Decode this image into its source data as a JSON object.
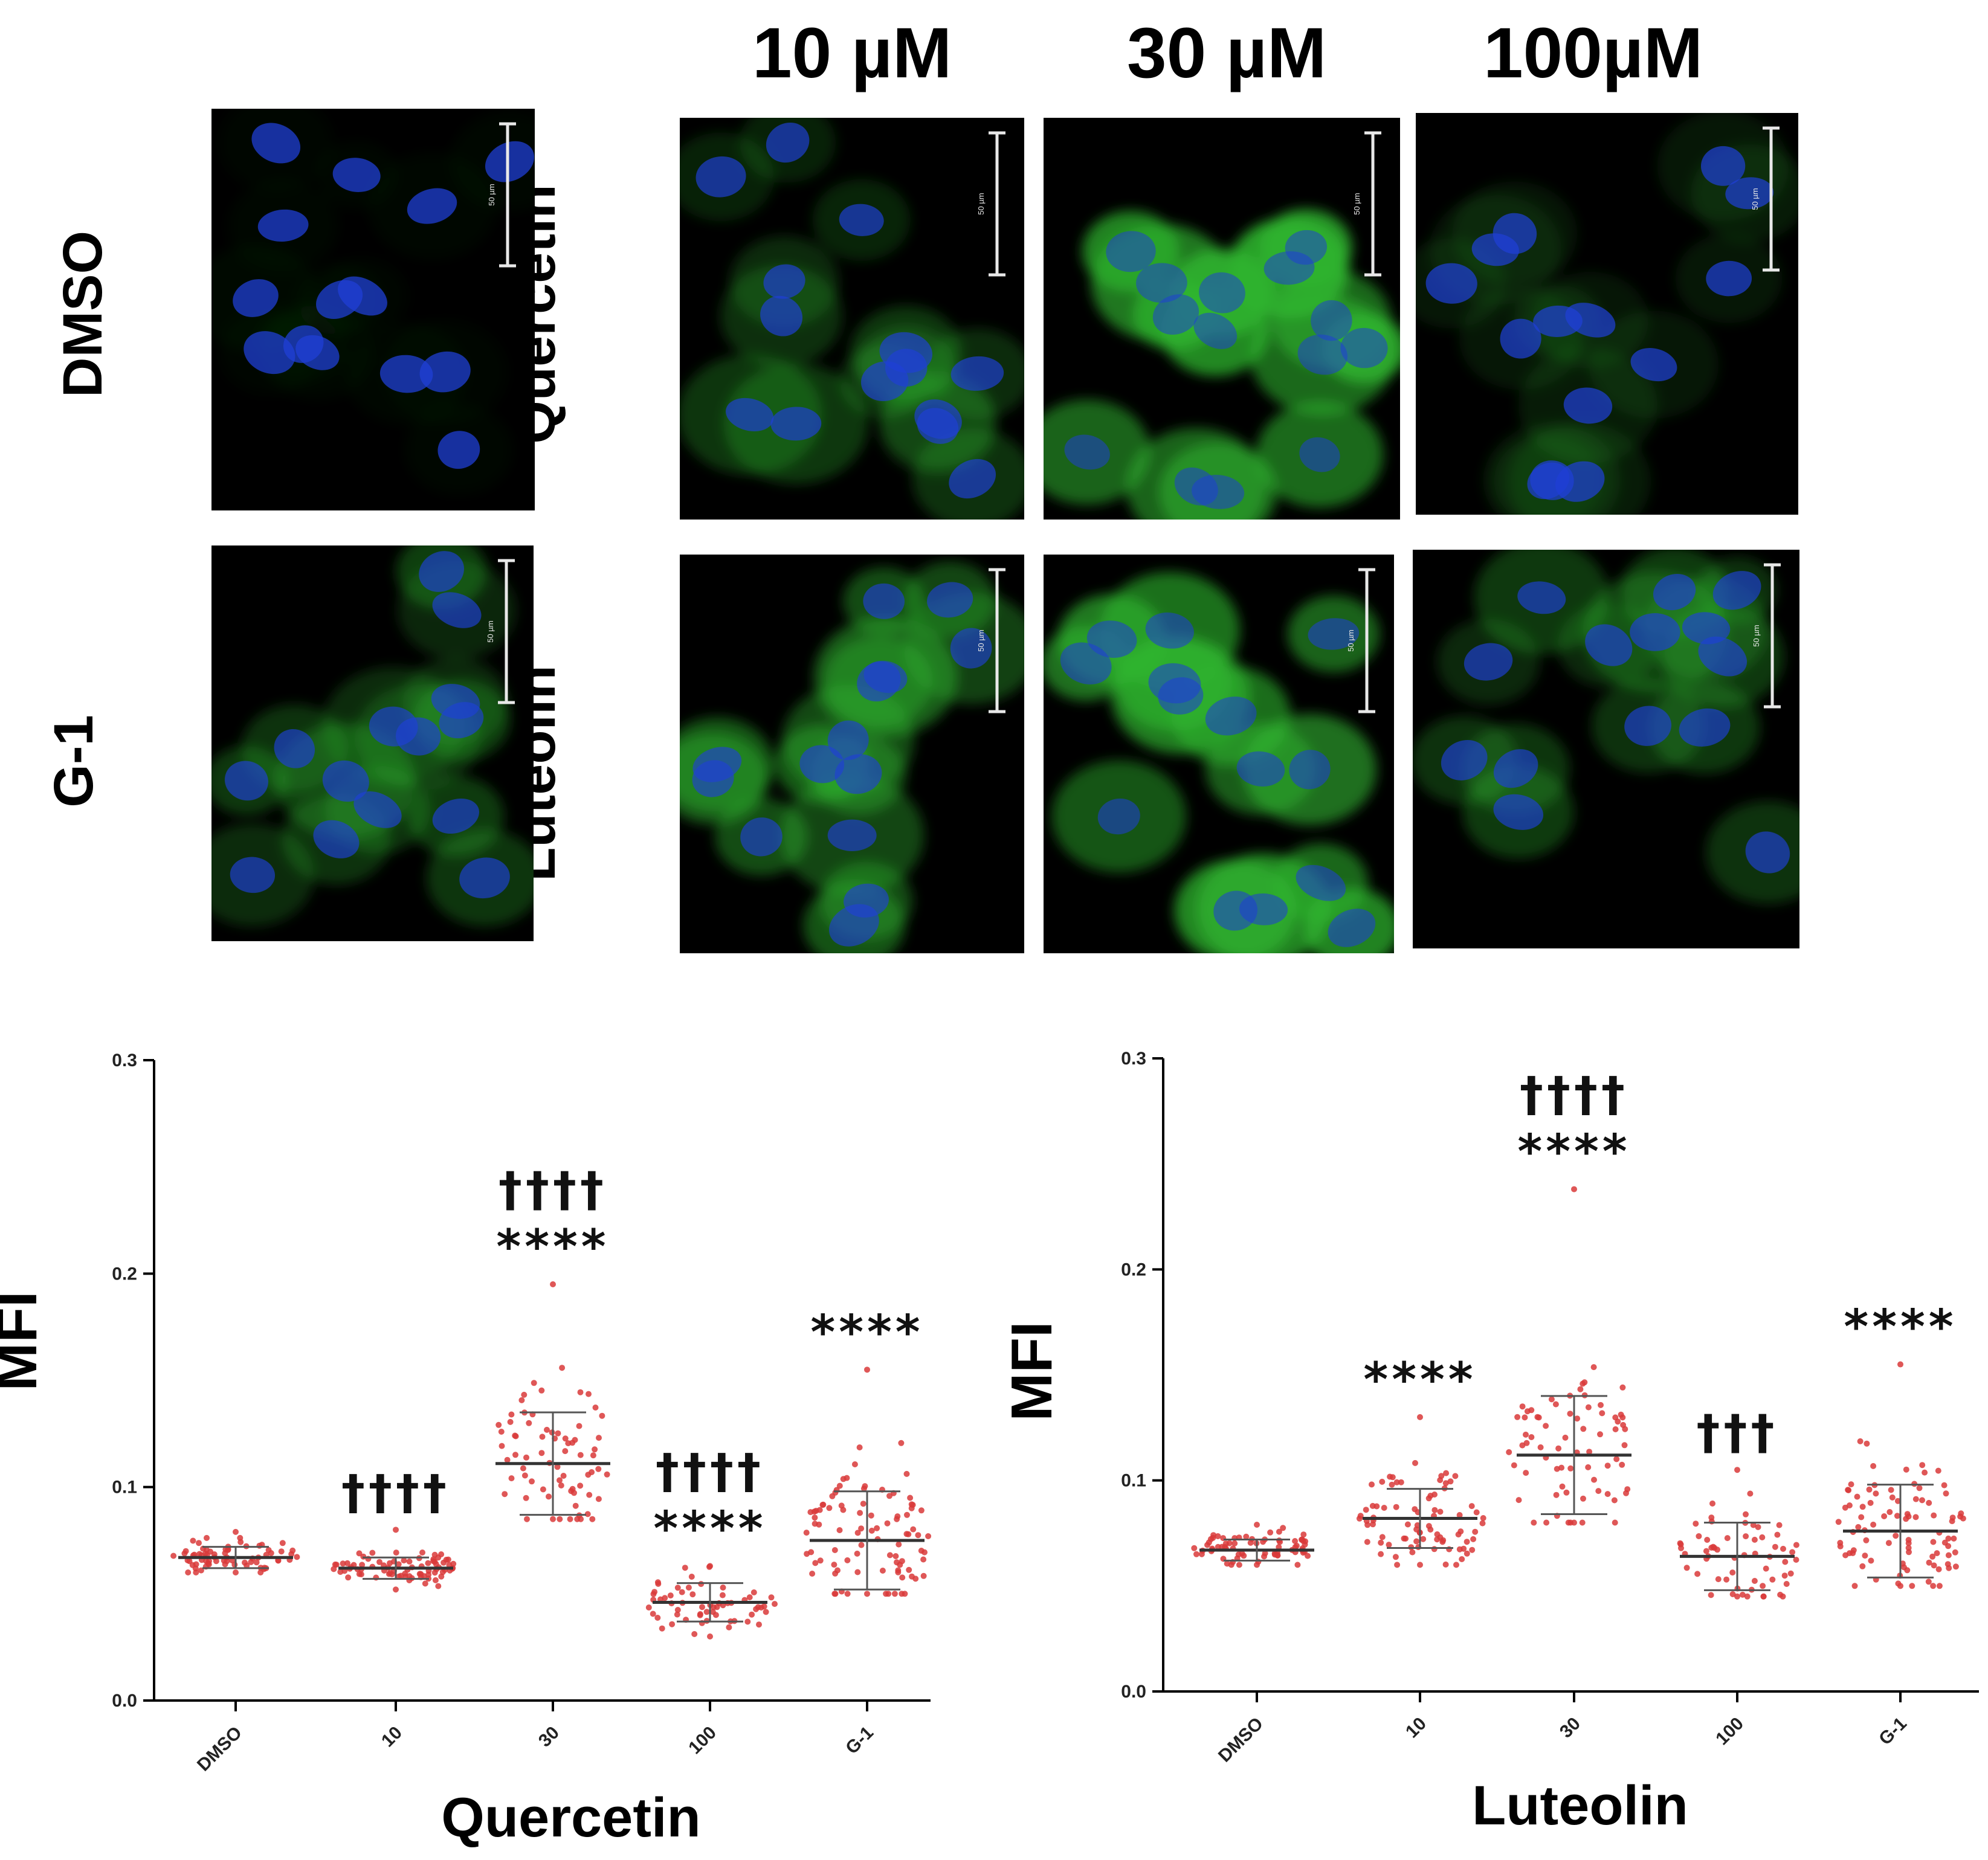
{
  "micrographs": {
    "conc_labels": [
      "10 µM",
      "30 µM",
      "100µM"
    ],
    "row_labels": [
      "DMSO",
      "G-1",
      "Quercetin",
      "Luteolin"
    ],
    "scale_bar_label": "50 µm",
    "panels": [
      {
        "row": "DMSO",
        "conc": "",
        "green_intensity": 0.05
      },
      {
        "row": "G-1",
        "conc": "",
        "green_intensity": 0.35
      },
      {
        "row": "Quercetin",
        "conc": "10 µM",
        "green_intensity": 0.3
      },
      {
        "row": "Quercetin",
        "conc": "30 µM",
        "green_intensity": 0.9
      },
      {
        "row": "Quercetin",
        "conc": "100µM",
        "green_intensity": 0.15
      },
      {
        "row": "Luteolin",
        "conc": "10 µM",
        "green_intensity": 0.5
      },
      {
        "row": "Luteolin",
        "conc": "30 µM",
        "green_intensity": 0.75
      },
      {
        "row": "Luteolin",
        "conc": "100µM",
        "green_intensity": 0.35
      }
    ],
    "colors": {
      "nucleus": "#1f3fd6",
      "cytoplasm": "#2fb52f",
      "background": "#000000"
    }
  },
  "chart_data": [
    {
      "type": "scatter",
      "ylabel": "MFI",
      "xlabel": "Quercetin",
      "categories": [
        "DMSO",
        "10",
        "30",
        "100",
        "G-1"
      ],
      "ylim": [
        0,
        0.3
      ],
      "yticks": [
        "0.0",
        "0.1",
        "0.2",
        "0.3"
      ],
      "mean": [
        0.067,
        0.062,
        0.111,
        0.046,
        0.075
      ],
      "sd": [
        0.005,
        0.005,
        0.024,
        0.009,
        0.023
      ],
      "min": [
        0.06,
        0.052,
        0.085,
        0.03,
        0.05
      ],
      "max": [
        0.079,
        0.08,
        0.195,
        0.063,
        0.155
      ],
      "n_points": [
        70,
        80,
        70,
        60,
        90
      ],
      "annotations": [
        {
          "category": "10",
          "lines": [
            "††††"
          ]
        },
        {
          "category": "30",
          "lines": [
            "††††",
            "****"
          ]
        },
        {
          "category": "100",
          "lines": [
            "††††",
            "****"
          ]
        },
        {
          "category": "G-1",
          "lines": [
            "****"
          ]
        }
      ],
      "point_color": "#d93a3a"
    },
    {
      "type": "scatter",
      "ylabel": "MFI",
      "xlabel": "Luteolin",
      "categories": [
        "DMSO",
        "10",
        "30",
        "100",
        "G-1"
      ],
      "ylim": [
        0,
        0.3
      ],
      "yticks": [
        "0.0",
        "0.1",
        "0.2",
        "0.3"
      ],
      "mean": [
        0.067,
        0.082,
        0.112,
        0.064,
        0.076
      ],
      "sd": [
        0.005,
        0.014,
        0.028,
        0.016,
        0.022
      ],
      "min": [
        0.06,
        0.06,
        0.08,
        0.045,
        0.05
      ],
      "max": [
        0.079,
        0.13,
        0.238,
        0.105,
        0.155
      ],
      "n_points": [
        70,
        80,
        70,
        60,
        90
      ],
      "annotations": [
        {
          "category": "10",
          "lines": [
            "****"
          ]
        },
        {
          "category": "30",
          "lines": [
            "††††",
            "****"
          ]
        },
        {
          "category": "100",
          "lines": [
            "†††"
          ]
        },
        {
          "category": "G-1",
          "lines": [
            "****"
          ]
        }
      ],
      "point_color": "#d93a3a"
    }
  ]
}
